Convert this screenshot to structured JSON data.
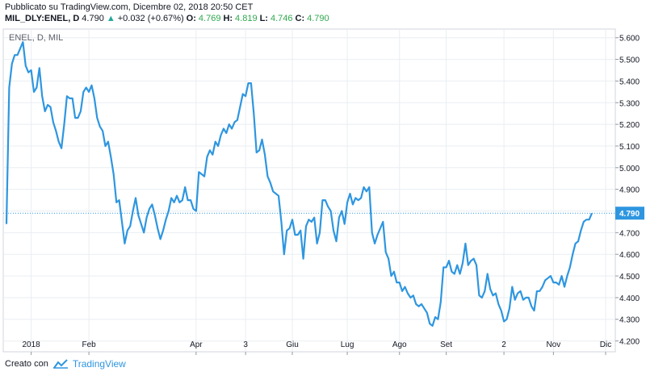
{
  "header": {
    "published": "Pubblicato su TradingView.com, Dicembre 02, 2018 20:50 CET",
    "symbol": "MIL_DLY:ENEL, D",
    "last": "4.790",
    "change_arrow": "▲",
    "change": "+0.032 (+0.67%)",
    "open_label": "O:",
    "open": "4.769",
    "high_label": "H:",
    "high": "4.819",
    "low_label": "L:",
    "low": "4.746",
    "close_label": "C:",
    "close": "4.790"
  },
  "chart_label": "ENEL, D, MIL",
  "footer": {
    "created_with": "Creato con",
    "brand": "TradingView",
    "brand_icon": "tradingview-logo-icon"
  },
  "colors": {
    "line": "#2e96e0",
    "up": "#26a69a",
    "price_tag": "#2e96e0",
    "grid": "#e9eef2"
  },
  "chart_data": {
    "type": "line",
    "title": "ENEL, D, MIL",
    "xlabel": "",
    "ylabel": "",
    "ylim": [
      4.15,
      5.64
    ],
    "y_ticks": [
      "5.600",
      "5.500",
      "5.400",
      "5.300",
      "5.200",
      "5.100",
      "5.000",
      "4.900",
      "4.800",
      "4.700",
      "4.600",
      "4.500",
      "4.400",
      "4.300",
      "4.200"
    ],
    "x_ticks": [
      {
        "label": "2018",
        "index": 9
      },
      {
        "label": "Feb",
        "index": 30
      },
      {
        "label": "Apr",
        "index": 69
      },
      {
        "label": "3",
        "index": 87
      },
      {
        "label": "Giu",
        "index": 104
      },
      {
        "label": "Lug",
        "index": 124
      },
      {
        "label": "Ago",
        "index": 143
      },
      {
        "label": "Set",
        "index": 160
      },
      {
        "label": "2",
        "index": 181
      },
      {
        "label": "Nov",
        "index": 199
      },
      {
        "label": "Dic",
        "index": 218
      }
    ],
    "last_price": "4.790",
    "grid": true,
    "series": [
      {
        "values": [
          4.74,
          5.37,
          5.48,
          5.52,
          5.52,
          5.55,
          5.58,
          5.47,
          5.44,
          5.45,
          5.35,
          5.37,
          5.46,
          5.33,
          5.26,
          5.29,
          5.28,
          5.21,
          5.17,
          5.12,
          5.09,
          5.2,
          5.33,
          5.32,
          5.32,
          5.23,
          5.23,
          5.26,
          5.35,
          5.37,
          5.35,
          5.38,
          5.32,
          5.23,
          5.19,
          5.17,
          5.1,
          5.12,
          5.05,
          4.97,
          4.84,
          4.85,
          4.75,
          4.65,
          4.71,
          4.73,
          4.8,
          4.86,
          4.78,
          4.74,
          4.7,
          4.77,
          4.81,
          4.83,
          4.78,
          4.72,
          4.67,
          4.71,
          4.76,
          4.8,
          4.86,
          4.84,
          4.87,
          4.84,
          4.85,
          4.91,
          4.85,
          4.85,
          4.81,
          4.8,
          4.98,
          4.97,
          4.96,
          5.05,
          5.08,
          5.06,
          5.12,
          5.1,
          5.15,
          5.18,
          5.16,
          5.2,
          5.18,
          5.21,
          5.22,
          5.28,
          5.34,
          5.33,
          5.39,
          5.39,
          5.25,
          5.07,
          5.08,
          5.13,
          5.06,
          4.96,
          4.93,
          4.89,
          4.88,
          4.87,
          4.75,
          4.6,
          4.71,
          4.72,
          4.76,
          4.69,
          4.69,
          4.71,
          4.58,
          4.73,
          4.76,
          4.75,
          4.77,
          4.65,
          4.7,
          4.85,
          4.85,
          4.82,
          4.8,
          4.71,
          4.66,
          4.77,
          4.8,
          4.74,
          4.84,
          4.88,
          4.83,
          4.86,
          4.85,
          4.86,
          4.91,
          4.89,
          4.91,
          4.7,
          4.65,
          4.69,
          4.72,
          4.75,
          4.61,
          4.58,
          4.5,
          4.52,
          4.47,
          4.47,
          4.43,
          4.45,
          4.42,
          4.4,
          4.41,
          4.37,
          4.36,
          4.37,
          4.35,
          4.33,
          4.28,
          4.27,
          4.31,
          4.3,
          4.38,
          4.54,
          4.54,
          4.57,
          4.52,
          4.51,
          4.55,
          4.51,
          4.56,
          4.65,
          4.55,
          4.57,
          4.58,
          4.55,
          4.41,
          4.4,
          4.43,
          4.51,
          4.44,
          4.41,
          4.42,
          4.37,
          4.34,
          4.29,
          4.3,
          4.35,
          4.45,
          4.39,
          4.42,
          4.43,
          4.39,
          4.4,
          4.4,
          4.36,
          4.34,
          4.43,
          4.43,
          4.45,
          4.48,
          4.49,
          4.5,
          4.47,
          4.47,
          4.46,
          4.5,
          4.45,
          4.5,
          4.54,
          4.6,
          4.65,
          4.66,
          4.71,
          4.75,
          4.76,
          4.76,
          4.79
        ]
      }
    ]
  }
}
